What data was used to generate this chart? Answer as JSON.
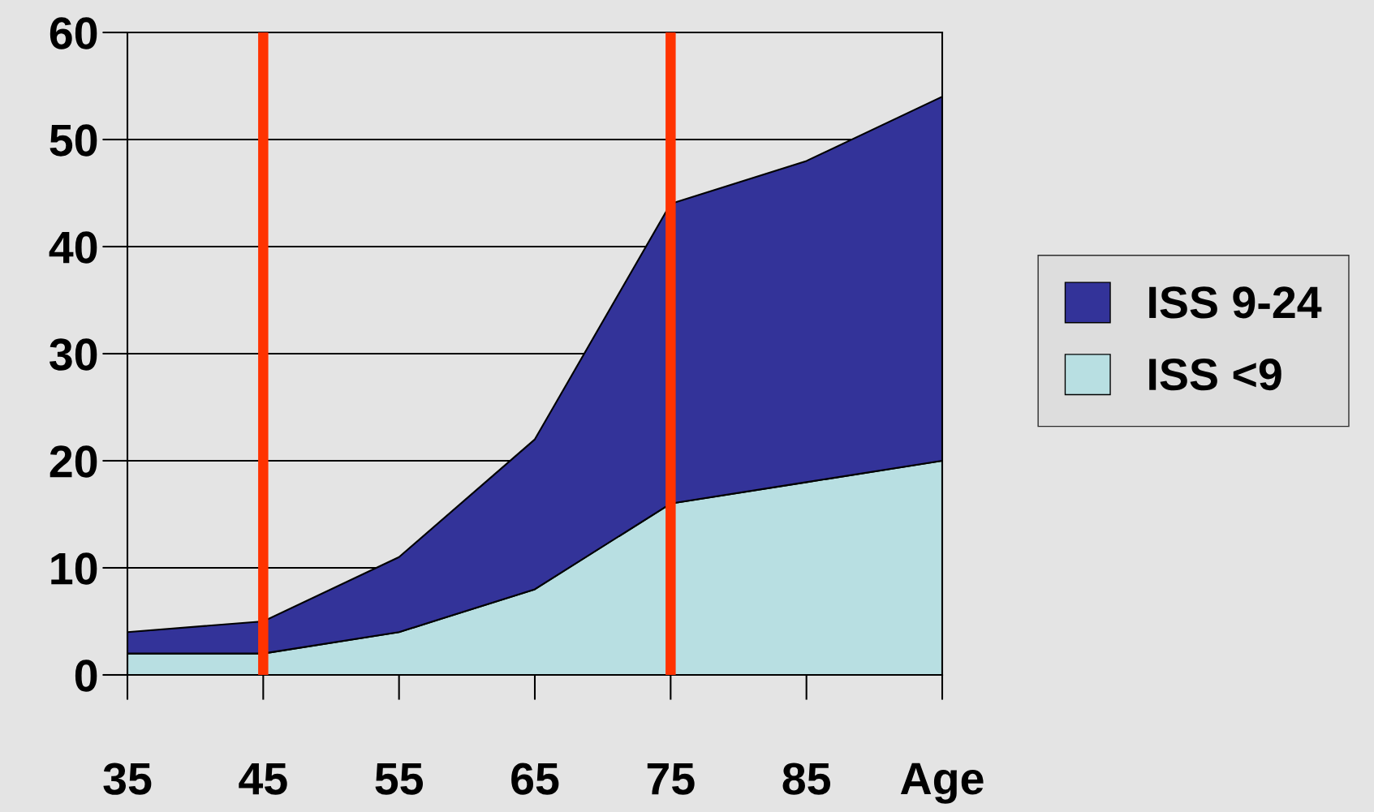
{
  "chart_data": {
    "type": "area",
    "stacked": true,
    "categories": [
      "35",
      "45",
      "55",
      "65",
      "75",
      "85",
      "Age"
    ],
    "series": [
      {
        "name": "ISS <9",
        "color": "#b8dfe2",
        "values": [
          2,
          2,
          4,
          8,
          16,
          18,
          20
        ]
      },
      {
        "name": "ISS 9-24",
        "color": "#333399",
        "values": [
          2,
          3,
          7,
          14,
          28,
          30,
          34
        ]
      }
    ],
    "ylim": [
      0,
      60
    ],
    "yticks": [
      0,
      10,
      20,
      30,
      40,
      50,
      60
    ],
    "grid": "y",
    "legend": "right",
    "ref_lines": [
      {
        "axis": "x",
        "value": "45",
        "color": "#ff3300"
      },
      {
        "axis": "x",
        "value": "75",
        "color": "#ff3300"
      }
    ]
  }
}
